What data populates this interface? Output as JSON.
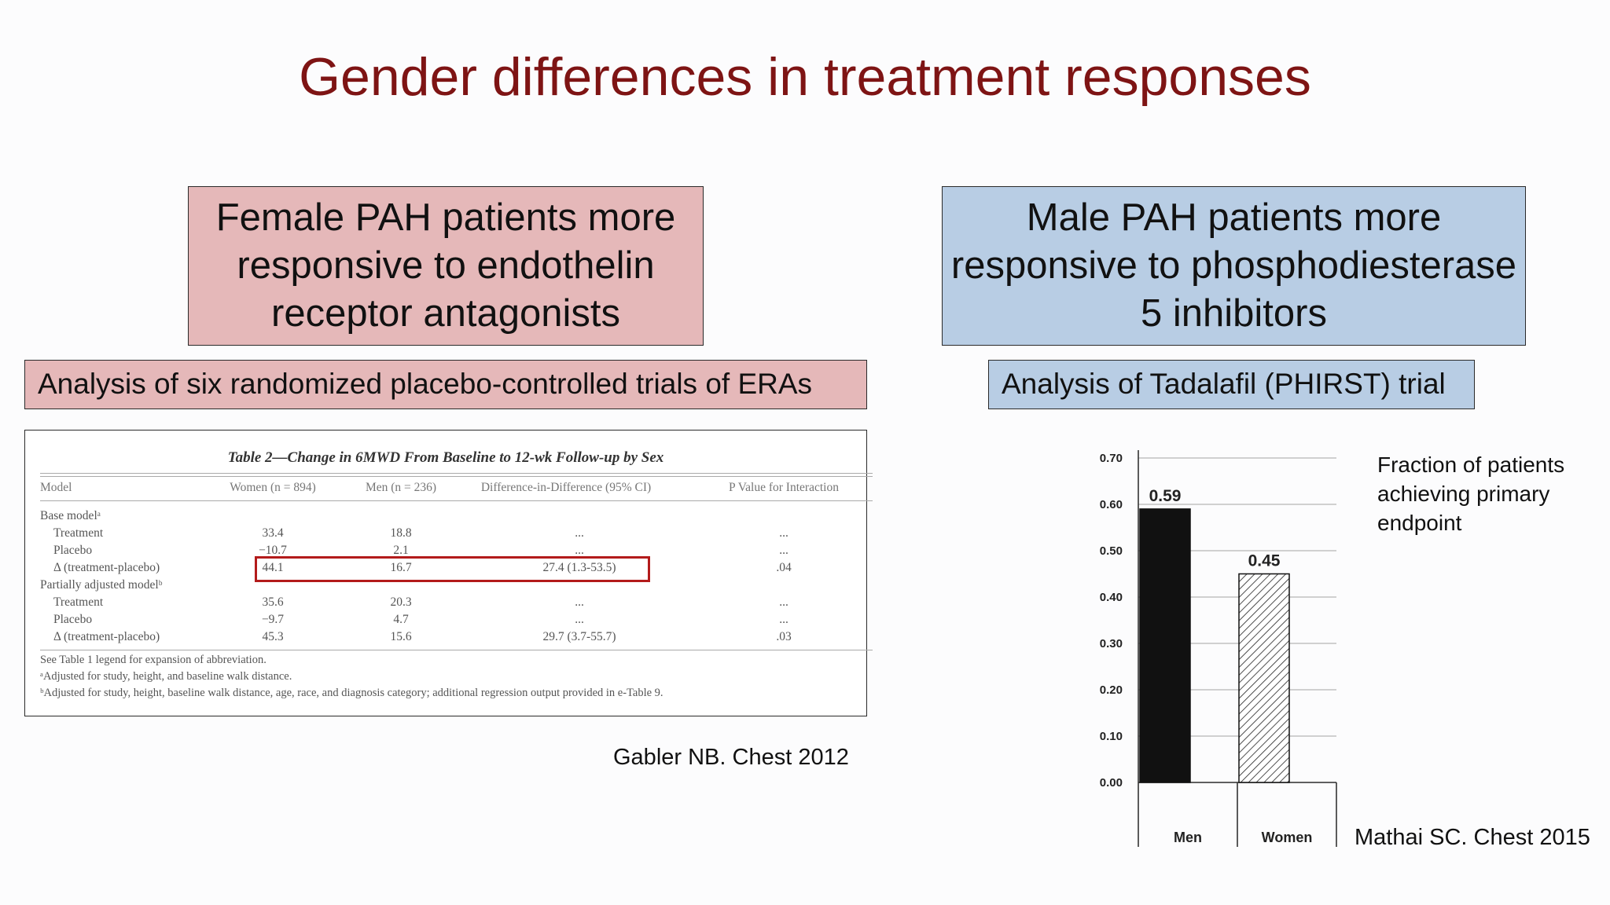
{
  "slide": {
    "title": "Gender differences in treatment responses"
  },
  "left": {
    "headline": "Female PAH patients more responsive to endothelin receptor antagonists",
    "subtitle": "Analysis of six randomized placebo-controlled trials of ERAs",
    "citation": "Gabler NB. Chest 2012",
    "table": {
      "title": "Table 2—Change in 6MWD From Baseline to 12-wk Follow-up by Sex",
      "headers": [
        "Model",
        "Women (n = 894)",
        "Men (n = 236)",
        "Difference-in-Difference (95% CI)",
        "P Value for Interaction"
      ],
      "rows": [
        {
          "label": "Base modelᵃ",
          "indent": false,
          "cells": [
            "",
            "",
            "",
            ""
          ]
        },
        {
          "label": "Treatment",
          "indent": true,
          "cells": [
            "33.4",
            "18.8",
            "...",
            "..."
          ]
        },
        {
          "label": "Placebo",
          "indent": true,
          "cells": [
            "−10.7",
            "2.1",
            "...",
            "..."
          ]
        },
        {
          "label": "Δ (treatment-placebo)",
          "indent": true,
          "cells": [
            "44.1",
            "16.7",
            "27.4 (1.3-53.5)",
            ".04"
          ]
        },
        {
          "label": "Partially adjusted modelᵇ",
          "indent": false,
          "cells": [
            "",
            "",
            "",
            ""
          ]
        },
        {
          "label": "Treatment",
          "indent": true,
          "cells": [
            "35.6",
            "20.3",
            "...",
            "..."
          ]
        },
        {
          "label": "Placebo",
          "indent": true,
          "cells": [
            "−9.7",
            "4.7",
            "...",
            "..."
          ]
        },
        {
          "label": "Δ (treatment-placebo)",
          "indent": true,
          "cells": [
            "45.3",
            "15.6",
            "29.7 (3.7-55.7)",
            ".03"
          ]
        }
      ],
      "footnotes": [
        "See Table 1 legend for expansion of abbreviation.",
        "ᵃAdjusted for study, height, and baseline walk distance.",
        "ᵇAdjusted for study, height, baseline walk distance, age, race, and diagnosis category; additional regression output provided in e-Table 9."
      ],
      "highlight_color": "#b31b1b"
    }
  },
  "right": {
    "headline": "Male PAH patients more responsive to phosphodiesterase 5 inhibitors",
    "subtitle": "Analysis of Tadalafil (PHIRST) trial",
    "chart_note": "Fraction of patients achieving primary endpoint",
    "citation": "Mathai SC. Chest 2015"
  },
  "colors": {
    "title": "#7e1414",
    "female_box": "#e5b8b9",
    "male_box": "#b8cde4"
  },
  "chart_data": {
    "type": "bar",
    "title": "",
    "categories": [
      "Men",
      "Women"
    ],
    "values": [
      0.59,
      0.45
    ],
    "data_labels": [
      "0.59",
      "0.45"
    ],
    "bar_styles": [
      "solid-black",
      "diagonal-hatch"
    ],
    "ylim": [
      0,
      0.7
    ],
    "yticks": [
      "0.00",
      "0.10",
      "0.20",
      "0.30",
      "0.40",
      "0.50",
      "0.60",
      "0.70"
    ],
    "grid": true,
    "xlabel": "",
    "ylabel": ""
  }
}
